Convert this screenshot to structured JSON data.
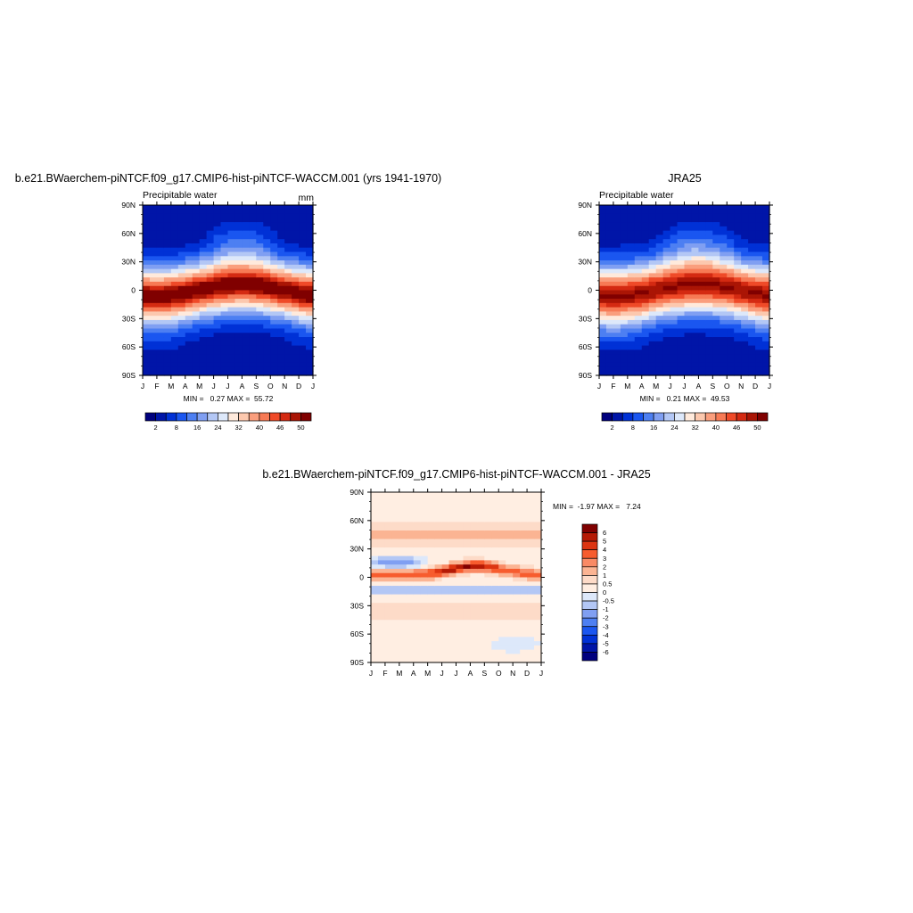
{
  "chart_data": [
    {
      "type": "heatmap",
      "title": "b.e21.BWaerchem-piNTCF.f09_g17.CMIP6-hist-piNTCF-WACCM.001 (yrs 1941-1970)",
      "subtitle_left": "Precipitable water",
      "subtitle_right": "mm",
      "x_ticks": [
        "J",
        "F",
        "M",
        "A",
        "M",
        "J",
        "J",
        "A",
        "S",
        "O",
        "N",
        "D",
        "J"
      ],
      "y_ticks": [
        "90N",
        "60N",
        "30N",
        "0",
        "30S",
        "60S",
        "90S"
      ],
      "x_range": [
        "J",
        "J"
      ],
      "y_range": [
        -90,
        90
      ],
      "stats_text": "MIN =   0.27 MAX =  55.72",
      "min": 0.27,
      "max": 55.72,
      "colorbar": {
        "orientation": "horizontal",
        "labels": [
          "2",
          "8",
          "16",
          "24",
          "32",
          "40",
          "46",
          "50"
        ],
        "colors": [
          "#00007e",
          "#0015a8",
          "#0031d6",
          "#1a56f0",
          "#4d7ff2",
          "#809ff2",
          "#b3c7f5",
          "#dde8fa",
          "#ffeadc",
          "#fcc8ae",
          "#fa9e7d",
          "#f77a55",
          "#ef4a28",
          "#d42a12",
          "#aa1505",
          "#800000"
        ]
      }
    },
    {
      "type": "heatmap",
      "title": "JRA25",
      "subtitle_left": "Precipitable water",
      "x_ticks": [
        "J",
        "F",
        "M",
        "A",
        "M",
        "J",
        "J",
        "A",
        "S",
        "O",
        "N",
        "D",
        "J"
      ],
      "y_ticks": [
        "90N",
        "60N",
        "30N",
        "0",
        "30S",
        "60S",
        "90S"
      ],
      "x_range": [
        "J",
        "J"
      ],
      "y_range": [
        -90,
        90
      ],
      "stats_text": "MIN =   0.21 MAX =  49.53",
      "min": 0.21,
      "max": 49.53,
      "colorbar": {
        "orientation": "horizontal",
        "labels": [
          "2",
          "8",
          "16",
          "24",
          "32",
          "40",
          "46",
          "50"
        ],
        "colors": [
          "#00007e",
          "#0015a8",
          "#0031d6",
          "#1a56f0",
          "#4d7ff2",
          "#809ff2",
          "#b3c7f5",
          "#dde8fa",
          "#ffeadc",
          "#fcc8ae",
          "#fa9e7d",
          "#f77a55",
          "#ef4a28",
          "#d42a12",
          "#aa1505",
          "#800000"
        ]
      }
    },
    {
      "type": "heatmap",
      "title": "b.e21.BWaerchem-piNTCF.f09_g17.CMIP6-hist-piNTCF-WACCM.001 - JRA25",
      "x_ticks": [
        "J",
        "F",
        "M",
        "A",
        "M",
        "J",
        "J",
        "A",
        "S",
        "O",
        "N",
        "D",
        "J"
      ],
      "y_ticks": [
        "90N",
        "60N",
        "30N",
        "0",
        "30S",
        "60S",
        "90S"
      ],
      "x_range": [
        "J",
        "J"
      ],
      "y_range": [
        -90,
        90
      ],
      "stats_text": "MIN =  -1.97 MAX =   7.24",
      "min": -1.97,
      "max": 7.24,
      "colorbar": {
        "orientation": "vertical",
        "labels": [
          "6",
          "5",
          "4",
          "3",
          "2",
          "1",
          "0.5",
          "0",
          "-0.5",
          "-1",
          "-2",
          "-3",
          "-4",
          "-5",
          "-6"
        ],
        "colors": [
          "#800000",
          "#b51a05",
          "#dd3512",
          "#f75c2e",
          "#f98a65",
          "#fbb493",
          "#fddbc8",
          "#ffeee2",
          "#dde8fa",
          "#b3c7f5",
          "#809ff2",
          "#4d7ff2",
          "#1a56f0",
          "#0031d6",
          "#0015a8",
          "#00007e"
        ]
      }
    }
  ]
}
